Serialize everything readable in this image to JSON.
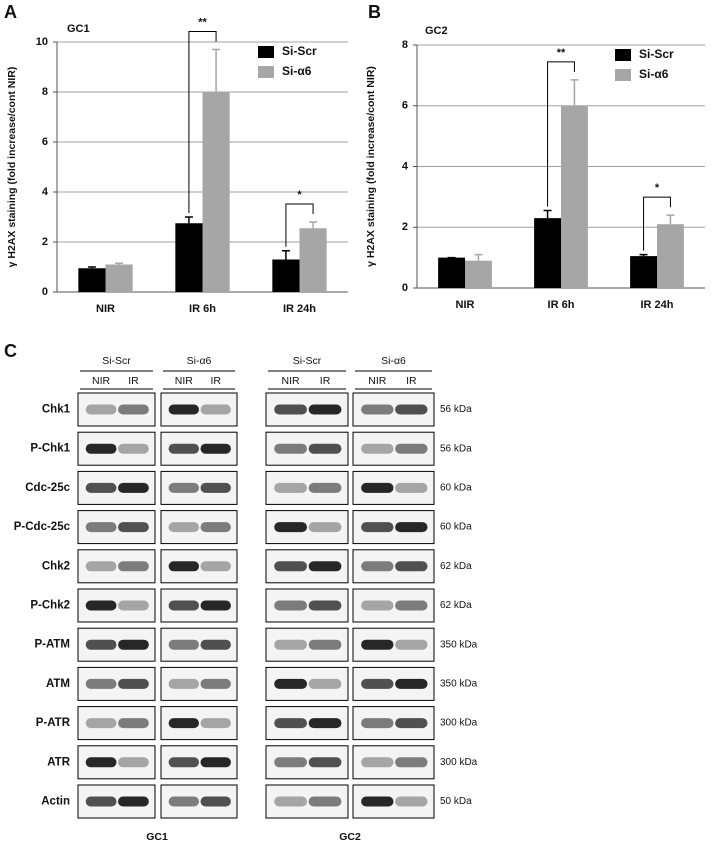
{
  "chart_data": [
    {
      "type": "bar",
      "title": "GC1",
      "y_label": "γ H2AX staining (fold increase/cont NIR)",
      "categories": [
        "NIR",
        "IR 6h",
        "IR 24h"
      ],
      "series": [
        {
          "name": "Si-Scr",
          "color": "#000000",
          "values": [
            0.95,
            2.75,
            1.3
          ],
          "errors": [
            0.05,
            0.25,
            0.35
          ]
        },
        {
          "name": "Si-α6",
          "color": "#a6a6a6",
          "values": [
            1.1,
            8.0,
            2.55
          ],
          "errors": [
            0.05,
            1.7,
            0.25
          ]
        }
      ],
      "ylim": [
        0,
        10
      ],
      "yticks": [
        0,
        2,
        4,
        6,
        8,
        10
      ],
      "grid": true,
      "legend": "upper right",
      "annotations": [
        {
          "text": "**",
          "category": 1
        },
        {
          "text": "*",
          "category": 2
        }
      ]
    },
    {
      "type": "bar",
      "title": "GC2",
      "y_label": "γ H2AX staining (fold increase/cont NIR)",
      "categories": [
        "NIR",
        "IR 6h",
        "IR 24h"
      ],
      "series": [
        {
          "name": "Si-Scr",
          "color": "#000000",
          "values": [
            1.0,
            2.3,
            1.05
          ],
          "errors": [
            0.0,
            0.25,
            0.05
          ]
        },
        {
          "name": "Si-α6",
          "color": "#a6a6a6",
          "values": [
            0.9,
            6.0,
            2.1
          ],
          "errors": [
            0.2,
            0.85,
            0.3
          ]
        }
      ],
      "ylim": [
        0,
        8
      ],
      "yticks": [
        0,
        2,
        4,
        6,
        8
      ],
      "grid": true,
      "legend": "upper right",
      "annotations": [
        {
          "text": "**",
          "category": 1
        },
        {
          "text": "*",
          "category": 2
        }
      ]
    }
  ],
  "panel_labels": [
    "A",
    "B",
    "C"
  ],
  "blot": {
    "cells": [
      "GC1",
      "GC2"
    ],
    "groups": [
      "Si-Scr",
      "Si-α6"
    ],
    "lanes": [
      "NIR",
      "IR"
    ],
    "proteins": [
      "Chk1",
      "P-Chk1",
      "Cdc-25c",
      "P-Cdc-25c",
      "Chk2",
      "P-Chk2",
      "P-ATM",
      "ATM",
      "P-ATR",
      "ATR",
      "Actin"
    ],
    "sizes": [
      "56 kDa",
      "56 kDa",
      "60 kDa",
      "60 kDa",
      "62 kDa",
      "62 kDa",
      "350 kDa",
      "350 kDa",
      "300 kDa",
      "300 kDa",
      "50 kDa"
    ]
  }
}
